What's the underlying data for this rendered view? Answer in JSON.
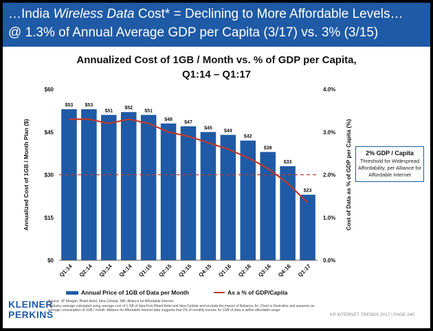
{
  "headline": {
    "line1_pre": "…India ",
    "line1_em": "Wireless Data",
    "line1_post": " Cost* = Declining to More Affordable Levels…",
    "line2": "@ 1.3% of Annual Average GDP per Capita (3/17) vs. 3% (3/15)"
  },
  "callout": {
    "title": "2% GDP / Capita",
    "body": "Threshold for Widespread Affordability, per Alliance for Affordable Internet"
  },
  "logo": {
    "line1": "KLEINER",
    "line2": "PERKINS"
  },
  "notes": {
    "source": "Source: JP Morgan, Bharti Airtel, Idea Cellular, IMF, Alliance for Affordable Internet.",
    "footnote": "*Industry average calculated using average cost of 1 GB of data from Bharti Airtel and Idea Cellular and exclude the impact of Reliance Jio. Chart is illustrative and assumes an average consumption of 1GB / month. Alliance for Affordable Internet data suggests that 2% of monthly income for 1GB of data is within affordable range."
  },
  "footer": "KP INTERNET TRENDS 2017  |  PAGE 240",
  "chart_data": {
    "type": "bar",
    "title": "Annualized Cost of 1GB / Month vs. % of GDP per Capita,",
    "subtitle": "Q1:14 – Q1:17",
    "ylabel": "Annualized Cost of 1GB / Month Plan ($)",
    "y2label": "Cost of Data as % of GDP per Capita (%)",
    "xlabel": "",
    "categories": [
      "Q1:14",
      "Q2:14",
      "Q3:14",
      "Q4:14",
      "Q1:15",
      "Q2:15",
      "Q3:15",
      "Q4:15",
      "Q1:16",
      "Q2:16",
      "Q3:16",
      "Q4:16",
      "Q1:17"
    ],
    "ylim": [
      0,
      60
    ],
    "yticks": [
      "$0",
      "$15",
      "$30",
      "$45",
      "$60"
    ],
    "y2lim": [
      0,
      4
    ],
    "y2ticks": [
      "0.0%",
      "1.0%",
      "2.0%",
      "3.0%",
      "4.0%"
    ],
    "grid": false,
    "legend_position": "bottom",
    "series": [
      {
        "name": "Annual Price of 1GB of Data per Month",
        "kind": "bar",
        "axis": "left",
        "color": "#1f5aa6",
        "values": [
          53,
          53,
          51,
          52,
          51,
          48,
          47,
          45,
          44,
          42,
          38,
          33,
          23
        ],
        "labels": [
          "$53",
          "$53",
          "$51",
          "$52",
          "$51",
          "$48",
          "$47",
          "$45",
          "$44",
          "$42",
          "$38",
          "$33",
          "$23"
        ]
      },
      {
        "name": "As a % of GDP/Capita",
        "kind": "line",
        "axis": "right",
        "color": "#c0392b",
        "values": [
          3.3,
          3.3,
          3.2,
          3.3,
          3.2,
          3.0,
          2.9,
          2.75,
          2.6,
          2.4,
          2.15,
          1.8,
          1.35
        ]
      }
    ],
    "reference_line": {
      "axis": "right",
      "value": 2.0,
      "color": "#c0392b",
      "style": "dashed"
    }
  }
}
